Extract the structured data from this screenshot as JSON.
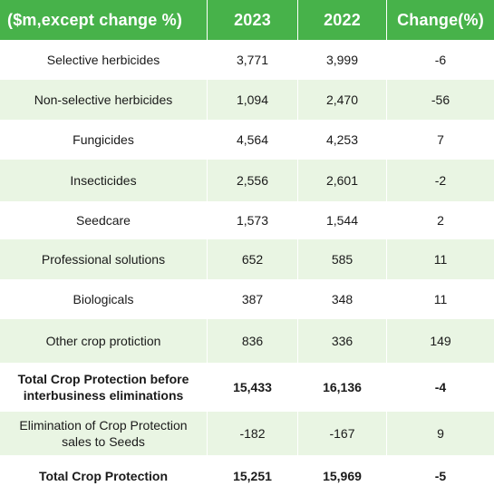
{
  "chart_data": {
    "type": "table",
    "columns": [
      "($m,except change %)",
      "2023",
      "2022",
      "Change(%)"
    ],
    "rows": [
      {
        "label": "Selective herbicides",
        "y2023": "3,771",
        "y2022": "3,999",
        "change": "-6",
        "bold": false
      },
      {
        "label": "Non-selective herbicides",
        "y2023": "1,094",
        "y2022": "2,470",
        "change": "-56",
        "bold": false
      },
      {
        "label": "Fungicides",
        "y2023": "4,564",
        "y2022": "4,253",
        "change": "7",
        "bold": false
      },
      {
        "label": "Insecticides",
        "y2023": "2,556",
        "y2022": "2,601",
        "change": "-2",
        "bold": false
      },
      {
        "label": "Seedcare",
        "y2023": "1,573",
        "y2022": "1,544",
        "change": "2",
        "bold": false
      },
      {
        "label": "Professional solutions",
        "y2023": "652",
        "y2022": "585",
        "change": "11",
        "bold": false
      },
      {
        "label": "Biologicals",
        "y2023": "387",
        "y2022": "348",
        "change": "11",
        "bold": false
      },
      {
        "label": "Other crop protiction",
        "y2023": "836",
        "y2022": "336",
        "change": "149",
        "bold": false
      },
      {
        "label": "Total Crop Protection before interbusiness eliminations",
        "y2023": "15,433",
        "y2022": "16,136",
        "change": "-4",
        "bold": true
      },
      {
        "label": "Elimination of Crop Protection sales to Seeds",
        "y2023": "-182",
        "y2022": "-167",
        "change": "9",
        "bold": false
      },
      {
        "label": "Total Crop Protection",
        "y2023": "15,251",
        "y2022": "15,969",
        "change": "-5",
        "bold": true
      }
    ]
  },
  "colors": {
    "header_bg": "#47b24a",
    "header_text": "#ffffff",
    "stripe": "#e9f5e3",
    "body_text": "#1a1a1a"
  }
}
